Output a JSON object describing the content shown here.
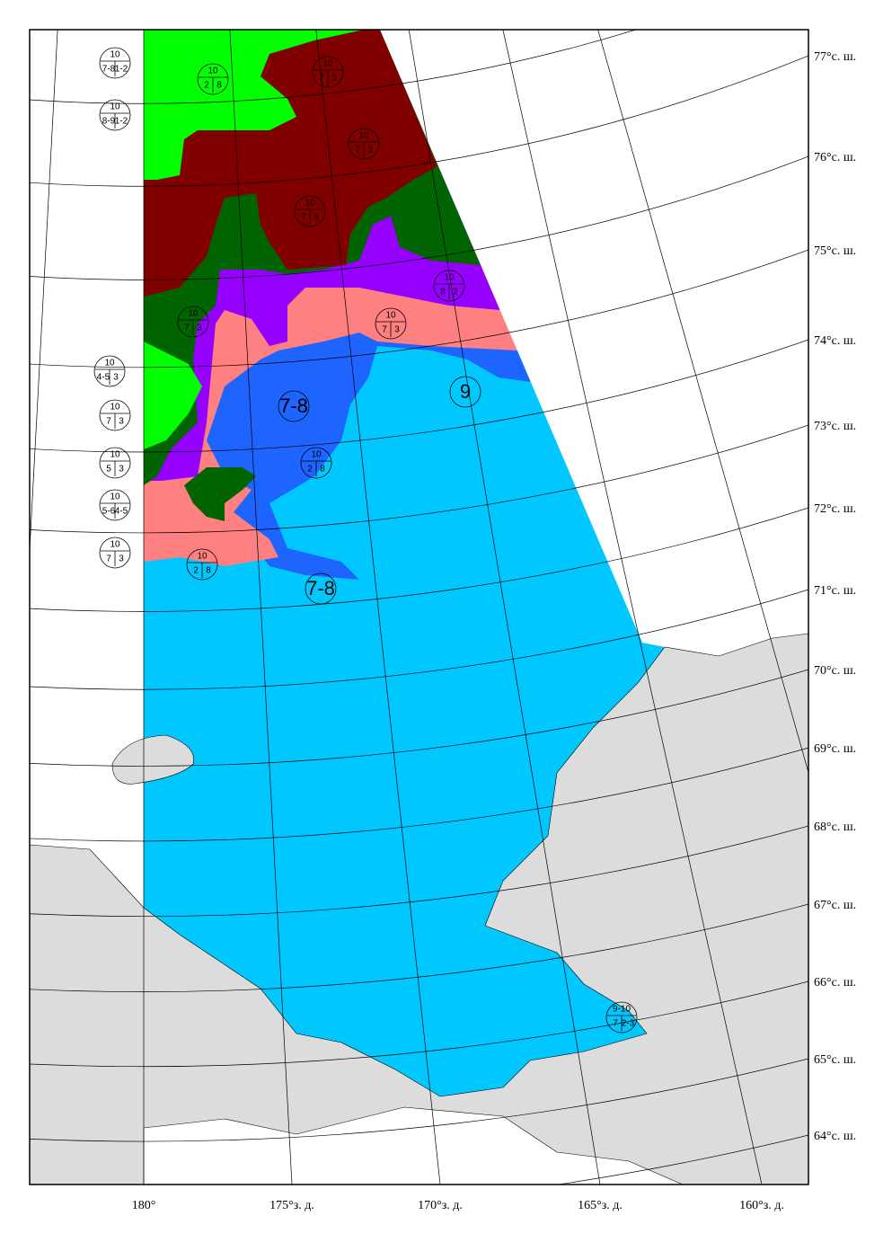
{
  "latitude_labels": [
    "77°с. ш.",
    "76°с. ш.",
    "75°с. ш.",
    "74°с. ш.",
    "73°с. ш.",
    "72°с. ш.",
    "71°с. ш.",
    "70°с. ш.",
    "69°с. ш.",
    "68°с. ш.",
    "67°с. ш.",
    "66°с. ш.",
    "65°с. ш.",
    "64°с. ш."
  ],
  "longitude_labels": [
    "180°",
    "175°з. д.",
    "170°з. д.",
    "165°з. д.",
    "160°з. д."
  ],
  "ice_labels": [
    {
      "total": "10",
      "left": "7-8",
      "right": "1-2"
    },
    {
      "total": "10",
      "left": "8-9",
      "right": "1-2"
    },
    {
      "total": "10",
      "left": "2",
      "right": "8"
    },
    {
      "total": "10",
      "left": "7",
      "right": "3"
    },
    {
      "total": "10",
      "left": "7",
      "right": "3"
    },
    {
      "total": "10",
      "left": "7",
      "right": "3"
    },
    {
      "total": "10",
      "left": "8",
      "right": "2"
    },
    {
      "total": "10",
      "left": "7",
      "right": "3"
    },
    {
      "total": "10",
      "left": "7",
      "right": "3"
    },
    {
      "total": "10",
      "left": "4-5",
      "right": "3"
    },
    {
      "total": "10",
      "left": "7",
      "right": "3"
    },
    {
      "total": "10",
      "left": "5",
      "right": "3"
    },
    {
      "total": "10",
      "left": "5-6",
      "right": "4-5"
    },
    {
      "total": "10",
      "left": "7",
      "right": "3"
    },
    {
      "total": "10",
      "left": "2",
      "right": "8"
    },
    {
      "total": "10",
      "left": "2",
      "right": "8"
    },
    {
      "total": "9-10",
      "left": "7",
      "right": "2-3"
    }
  ],
  "concentration_labels": [
    "7-8",
    "9",
    "7-8"
  ]
}
